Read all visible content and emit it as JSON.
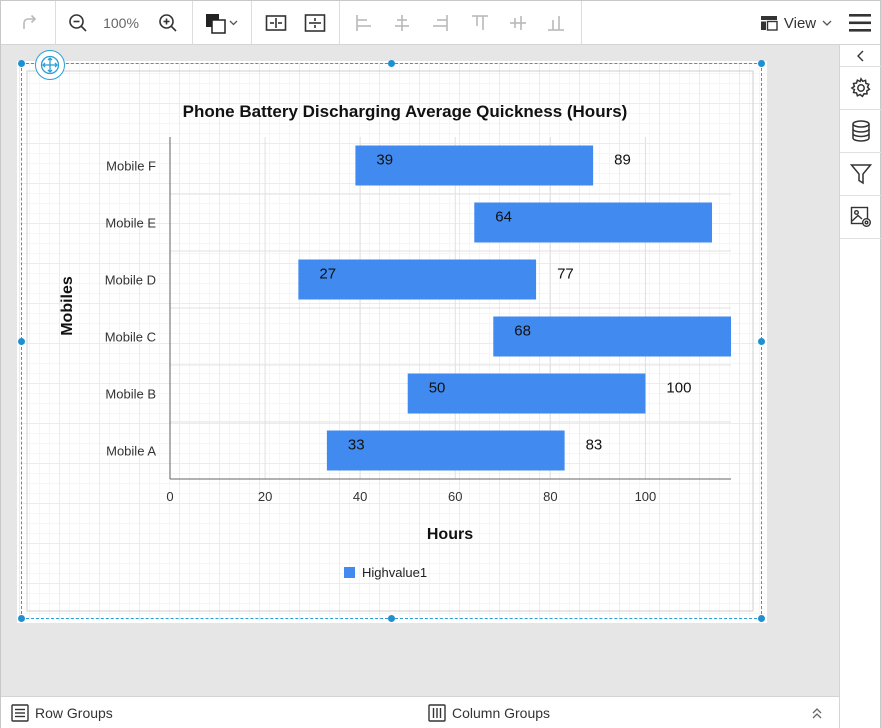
{
  "toolbar": {
    "redo_icon": "redo-icon",
    "zoom_level": "100%",
    "view_label": "View"
  },
  "right_panel": {
    "icons": [
      "chevron-left-icon",
      "gear-icon",
      "database-icon",
      "filter-icon",
      "image-settings-icon"
    ]
  },
  "bottom_bar": {
    "row_groups_label": "Row Groups",
    "column_groups_label": "Column Groups"
  },
  "chart_data": {
    "type": "bar",
    "orientation": "horizontal",
    "floating": true,
    "title": "Phone Battery Discharging Average Quickness (Hours)",
    "xlabel": "Hours",
    "ylabel": "Mobiles",
    "categories": [
      "Mobile A",
      "Mobile B",
      "Mobile C",
      "Mobile D",
      "Mobile E",
      "Mobile F"
    ],
    "series": [
      {
        "name": "Highvalue1",
        "low": [
          33,
          50,
          68,
          27,
          64,
          39
        ],
        "high": [
          83,
          100,
          118,
          77,
          114,
          89
        ],
        "low_labels": [
          "33",
          "50",
          "68",
          "27",
          "64",
          "39"
        ],
        "high_labels": [
          "83",
          "100",
          "",
          "77",
          "",
          "89"
        ]
      }
    ],
    "x_ticks": [
      "0",
      "20",
      "40",
      "60",
      "80",
      "100"
    ],
    "xlim": [
      0,
      118
    ],
    "grid": true,
    "legend": "bottom-center",
    "colors": {
      "bar": "#418af0",
      "axis": "#666666",
      "grid": "#e0e0e0"
    }
  }
}
